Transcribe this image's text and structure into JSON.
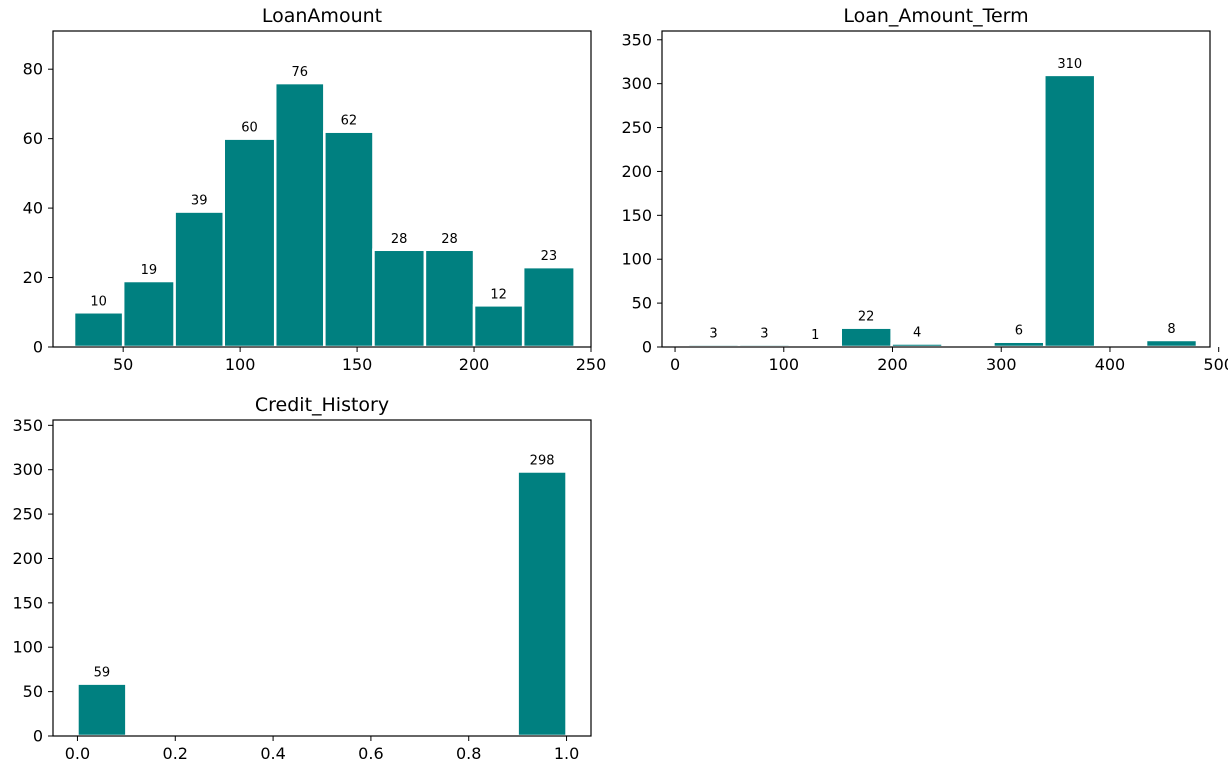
{
  "figure": {
    "bar_color": "#008080",
    "bar_edge_color": "#ffffff",
    "background": "#ffffff"
  },
  "chart_data": [
    {
      "type": "bar",
      "title": "LoanAmount",
      "xlabel": "",
      "ylabel": "",
      "xlim": [
        20,
        250
      ],
      "ylim": [
        0,
        91
      ],
      "xticks": [
        50,
        100,
        150,
        200,
        250
      ],
      "yticks": [
        0,
        20,
        40,
        60,
        80
      ],
      "bins": [
        {
          "x0": 29,
          "x1": 50,
          "value": 10
        },
        {
          "x0": 50,
          "x1": 72,
          "value": 19
        },
        {
          "x0": 72,
          "x1": 93,
          "value": 39
        },
        {
          "x0": 93,
          "x1": 115,
          "value": 60
        },
        {
          "x0": 115,
          "x1": 136,
          "value": 76
        },
        {
          "x0": 136,
          "x1": 157,
          "value": 62
        },
        {
          "x0": 157,
          "x1": 179,
          "value": 28
        },
        {
          "x0": 179,
          "x1": 200,
          "value": 28
        },
        {
          "x0": 200,
          "x1": 221,
          "value": 12
        },
        {
          "x0": 221,
          "x1": 243,
          "value": 23
        }
      ]
    },
    {
      "type": "bar",
      "title": "Loan_Amount_Term",
      "xlabel": "",
      "ylabel": "",
      "xlim": [
        -12,
        492
      ],
      "ylim": [
        0,
        360
      ],
      "xticks": [
        0,
        100,
        200,
        300,
        400,
        500
      ],
      "yticks": [
        0,
        50,
        100,
        150,
        200,
        250,
        300,
        350
      ],
      "bins": [
        {
          "x0": 12,
          "x1": 58.8,
          "value": 3
        },
        {
          "x0": 58.8,
          "x1": 105.6,
          "value": 3
        },
        {
          "x0": 105.6,
          "x1": 152.4,
          "value": 1
        },
        {
          "x0": 152.4,
          "x1": 199.2,
          "value": 22
        },
        {
          "x0": 199.2,
          "x1": 246,
          "value": 4
        },
        {
          "x0": 246,
          "x1": 292.8,
          "value": 0
        },
        {
          "x0": 292.8,
          "x1": 339.6,
          "value": 6
        },
        {
          "x0": 339.6,
          "x1": 386.4,
          "value": 310
        },
        {
          "x0": 386.4,
          "x1": 433.2,
          "value": 0
        },
        {
          "x0": 433.2,
          "x1": 480,
          "value": 8
        }
      ]
    },
    {
      "type": "bar",
      "title": "Credit_History",
      "xlabel": "",
      "ylabel": "",
      "xlim": [
        -0.05,
        1.05
      ],
      "ylim": [
        0,
        356
      ],
      "xticks": [
        "0.0",
        "0.2",
        "0.4",
        "0.6",
        "0.8",
        "1.0"
      ],
      "yticks": [
        0,
        50,
        100,
        150,
        200,
        250,
        300,
        350
      ],
      "bins": [
        {
          "x0": 0,
          "x1": 0.1,
          "value": 59
        },
        {
          "x0": 0.1,
          "x1": 0.2,
          "value": 0
        },
        {
          "x0": 0.2,
          "x1": 0.3,
          "value": 0
        },
        {
          "x0": 0.3,
          "x1": 0.4,
          "value": 0
        },
        {
          "x0": 0.4,
          "x1": 0.5,
          "value": 0
        },
        {
          "x0": 0.5,
          "x1": 0.6,
          "value": 0
        },
        {
          "x0": 0.6,
          "x1": 0.7,
          "value": 0
        },
        {
          "x0": 0.7,
          "x1": 0.8,
          "value": 0
        },
        {
          "x0": 0.8,
          "x1": 0.9,
          "value": 0
        },
        {
          "x0": 0.9,
          "x1": 1.0,
          "value": 298
        }
      ]
    }
  ]
}
